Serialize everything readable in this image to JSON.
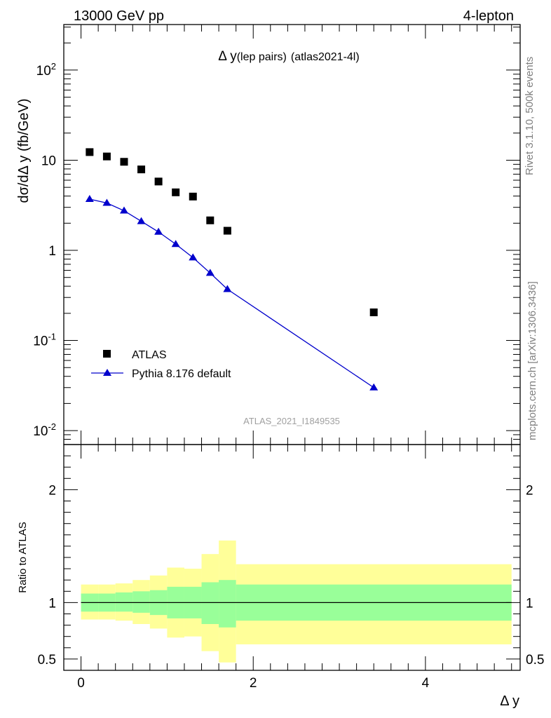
{
  "header": {
    "left": "13000 GeV pp",
    "right": "4-lepton"
  },
  "plot_title": {
    "main": "Δ y",
    "paren": "(lep pairs)",
    "tag": "(atlas2021-4l)"
  },
  "ylabel": "dσ/dΔ y (fb/GeV)",
  "xlabel": "Δ y",
  "ratio_ylabel": "Ratio to ATLAS",
  "side_text": {
    "rivet": "Rivet 3.1.10,  500k events",
    "mcplots": "mcplots.cern.ch [arXiv:1306.3436]"
  },
  "analysis_id": "ATLAS_2021_I1849535",
  "legend": {
    "data": "ATLAS",
    "mc": "Pythia 8.176 default"
  },
  "colors": {
    "data": "#000000",
    "mc": "#0000cc",
    "band_inner": "#99ff99",
    "band_outer": "#ffff99"
  },
  "chart_data": {
    "type": "scatter",
    "main_panel": {
      "y_scale": "log",
      "ylim": [
        0.007,
        320
      ],
      "xlim": [
        -0.2,
        5.1
      ],
      "ytick_labels": [
        {
          "base": "10",
          "exp": "-2",
          "value": 0.01
        },
        {
          "base": "10",
          "exp": "-1",
          "value": 0.1
        },
        {
          "base": "1",
          "exp": "",
          "value": 1
        },
        {
          "base": "10",
          "exp": "",
          "value": 10
        },
        {
          "base": "10",
          "exp": "2",
          "value": 100
        }
      ],
      "series": [
        {
          "name": "ATLAS",
          "marker": "square",
          "x": [
            0.1,
            0.3,
            0.5,
            0.7,
            0.9,
            1.1,
            1.3,
            1.5,
            1.7,
            3.4
          ],
          "y": [
            12.3,
            11.0,
            9.6,
            7.9,
            5.8,
            4.4,
            3.95,
            2.15,
            1.65,
            0.205
          ]
        },
        {
          "name": "Pythia 8.176 default",
          "marker": "triangle",
          "line": true,
          "x": [
            0.1,
            0.3,
            0.5,
            0.7,
            0.9,
            1.1,
            1.3,
            1.5,
            1.7,
            3.4
          ],
          "y": [
            3.7,
            3.35,
            2.75,
            2.1,
            1.6,
            1.17,
            0.83,
            0.56,
            0.37,
            0.03
          ]
        }
      ]
    },
    "ratio_panel": {
      "ylim": [
        0.4,
        2.4
      ],
      "xlim": [
        -0.2,
        5.1
      ],
      "yticks": [
        0.5,
        1,
        2
      ],
      "ytick_labels": [
        "0.5",
        "1",
        "2"
      ],
      "xticks": [
        0,
        2,
        4
      ],
      "xtick_labels": [
        "0",
        "2",
        "4"
      ],
      "reference": 1,
      "bands": {
        "bin_edges": [
          0,
          0.2,
          0.4,
          0.6,
          0.8,
          1.0,
          1.2,
          1.4,
          1.6,
          1.8,
          5.0
        ],
        "inner_low": [
          0.92,
          0.92,
          0.92,
          0.91,
          0.89,
          0.86,
          0.86,
          0.81,
          0.78,
          0.84
        ],
        "inner_high": [
          1.08,
          1.08,
          1.09,
          1.1,
          1.11,
          1.14,
          1.14,
          1.18,
          1.2,
          1.16
        ],
        "outer_low": [
          0.85,
          0.85,
          0.84,
          0.81,
          0.77,
          0.69,
          0.7,
          0.57,
          0.47,
          0.63
        ],
        "outer_high": [
          1.16,
          1.16,
          1.17,
          1.2,
          1.24,
          1.31,
          1.3,
          1.43,
          1.55,
          1.34
        ]
      }
    }
  }
}
